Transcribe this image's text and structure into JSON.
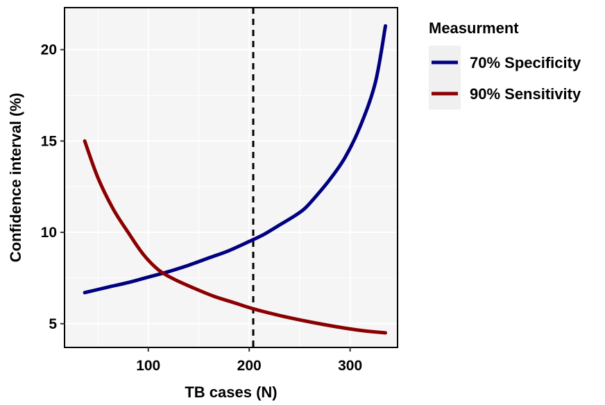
{
  "chart_data": {
    "type": "line",
    "xlabel": "TB cases (N)",
    "ylabel": "Confidence interval (%)",
    "xlim": [
      17,
      347
    ],
    "ylim": [
      3.7,
      22.3
    ],
    "x_ticks": [
      100,
      200,
      300
    ],
    "y_ticks": [
      5,
      10,
      15,
      20
    ],
    "x_tick_labels": [
      "100",
      "200",
      "300"
    ],
    "y_tick_labels": [
      "5",
      "10",
      "15",
      "20"
    ],
    "grid": true,
    "legend": {
      "title": "Measurment",
      "position": "right"
    },
    "reference_lines": [
      {
        "orientation": "vertical",
        "x": 204,
        "style": "dashed",
        "color": "#000000"
      }
    ],
    "series": [
      {
        "name": "70% Specificity",
        "color": "#000080",
        "x": [
          37,
          60,
          80,
          100,
          120,
          140,
          160,
          180,
          200,
          215,
          230,
          245,
          255,
          265,
          280,
          295,
          310,
          325,
          335
        ],
        "y": [
          6.7,
          7.0,
          7.25,
          7.55,
          7.85,
          8.2,
          8.6,
          9.0,
          9.5,
          9.9,
          10.4,
          10.9,
          11.3,
          11.9,
          12.9,
          14.1,
          15.8,
          18.2,
          21.3
        ]
      },
      {
        "name": "90% Sensitivity",
        "color": "#8B0000",
        "x": [
          37,
          50,
          65,
          80,
          95,
          110,
          125,
          145,
          165,
          185,
          205,
          230,
          260,
          290,
          315,
          335
        ],
        "y": [
          15.0,
          13.0,
          11.3,
          10.0,
          8.8,
          7.95,
          7.45,
          6.95,
          6.5,
          6.15,
          5.8,
          5.45,
          5.1,
          4.8,
          4.6,
          4.5
        ]
      }
    ]
  }
}
